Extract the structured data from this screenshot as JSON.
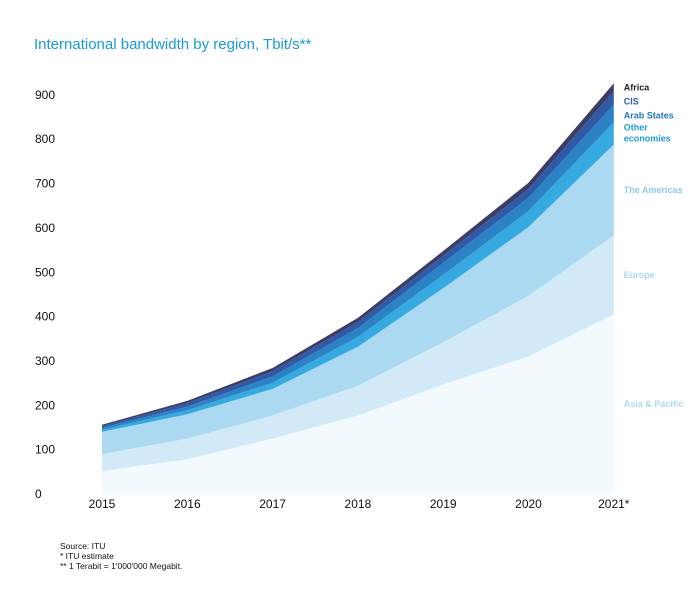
{
  "chart_data": {
    "type": "area",
    "stacked": true,
    "title": "International bandwidth by region, Tbit/s**",
    "xlabel": "",
    "ylabel": "",
    "categories": [
      "2015",
      "2016",
      "2017",
      "2018",
      "2019",
      "2020",
      "2021*"
    ],
    "y_ticks": [
      "0",
      "100",
      "200",
      "300",
      "400",
      "500",
      "600",
      "700",
      "800",
      "900"
    ],
    "ylim": [
      0,
      950
    ],
    "grid": false,
    "legend": "inline labels at right end",
    "series": [
      {
        "name": "Asia & Pacific",
        "color": "#f3fafd",
        "label_color": "#a9d8ef",
        "values": [
          52,
          78,
          125,
          177,
          247,
          310,
          405
        ]
      },
      {
        "name": "Europe",
        "color": "#d2eaf8",
        "label_color": "#a9d8ef",
        "values": [
          38,
          47,
          52,
          67,
          95,
          137,
          178
        ]
      },
      {
        "name": "The Americas",
        "color": "#abd9f1",
        "label_color": "#8ccbed",
        "values": [
          50,
          55,
          60,
          88,
          122,
          155,
          205
        ]
      },
      {
        "name": "Other economies",
        "color": "#36a9e1",
        "label_color": "#1d9bd7",
        "values": [
          5,
          9,
          14,
          22,
          30,
          36,
          50
        ]
      },
      {
        "name": "Arab States",
        "color": "#2b82c5",
        "label_color": "#2379ba",
        "values": [
          4,
          8,
          14,
          20,
          27,
          30,
          40
        ]
      },
      {
        "name": "CIS",
        "color": "#2f5aa8",
        "label_color": "#2b62ae",
        "values": [
          4,
          8,
          12,
          14,
          16,
          20,
          30
        ]
      },
      {
        "name": "Africa",
        "color": "#3c3d64",
        "label_color": "#222222",
        "values": [
          3,
          5,
          7,
          9,
          11,
          14,
          18
        ]
      }
    ]
  },
  "notes": [
    "Source: ITU",
    "* ITU estimate",
    "** 1 Terabit = 1'000'000 Megabit."
  ]
}
